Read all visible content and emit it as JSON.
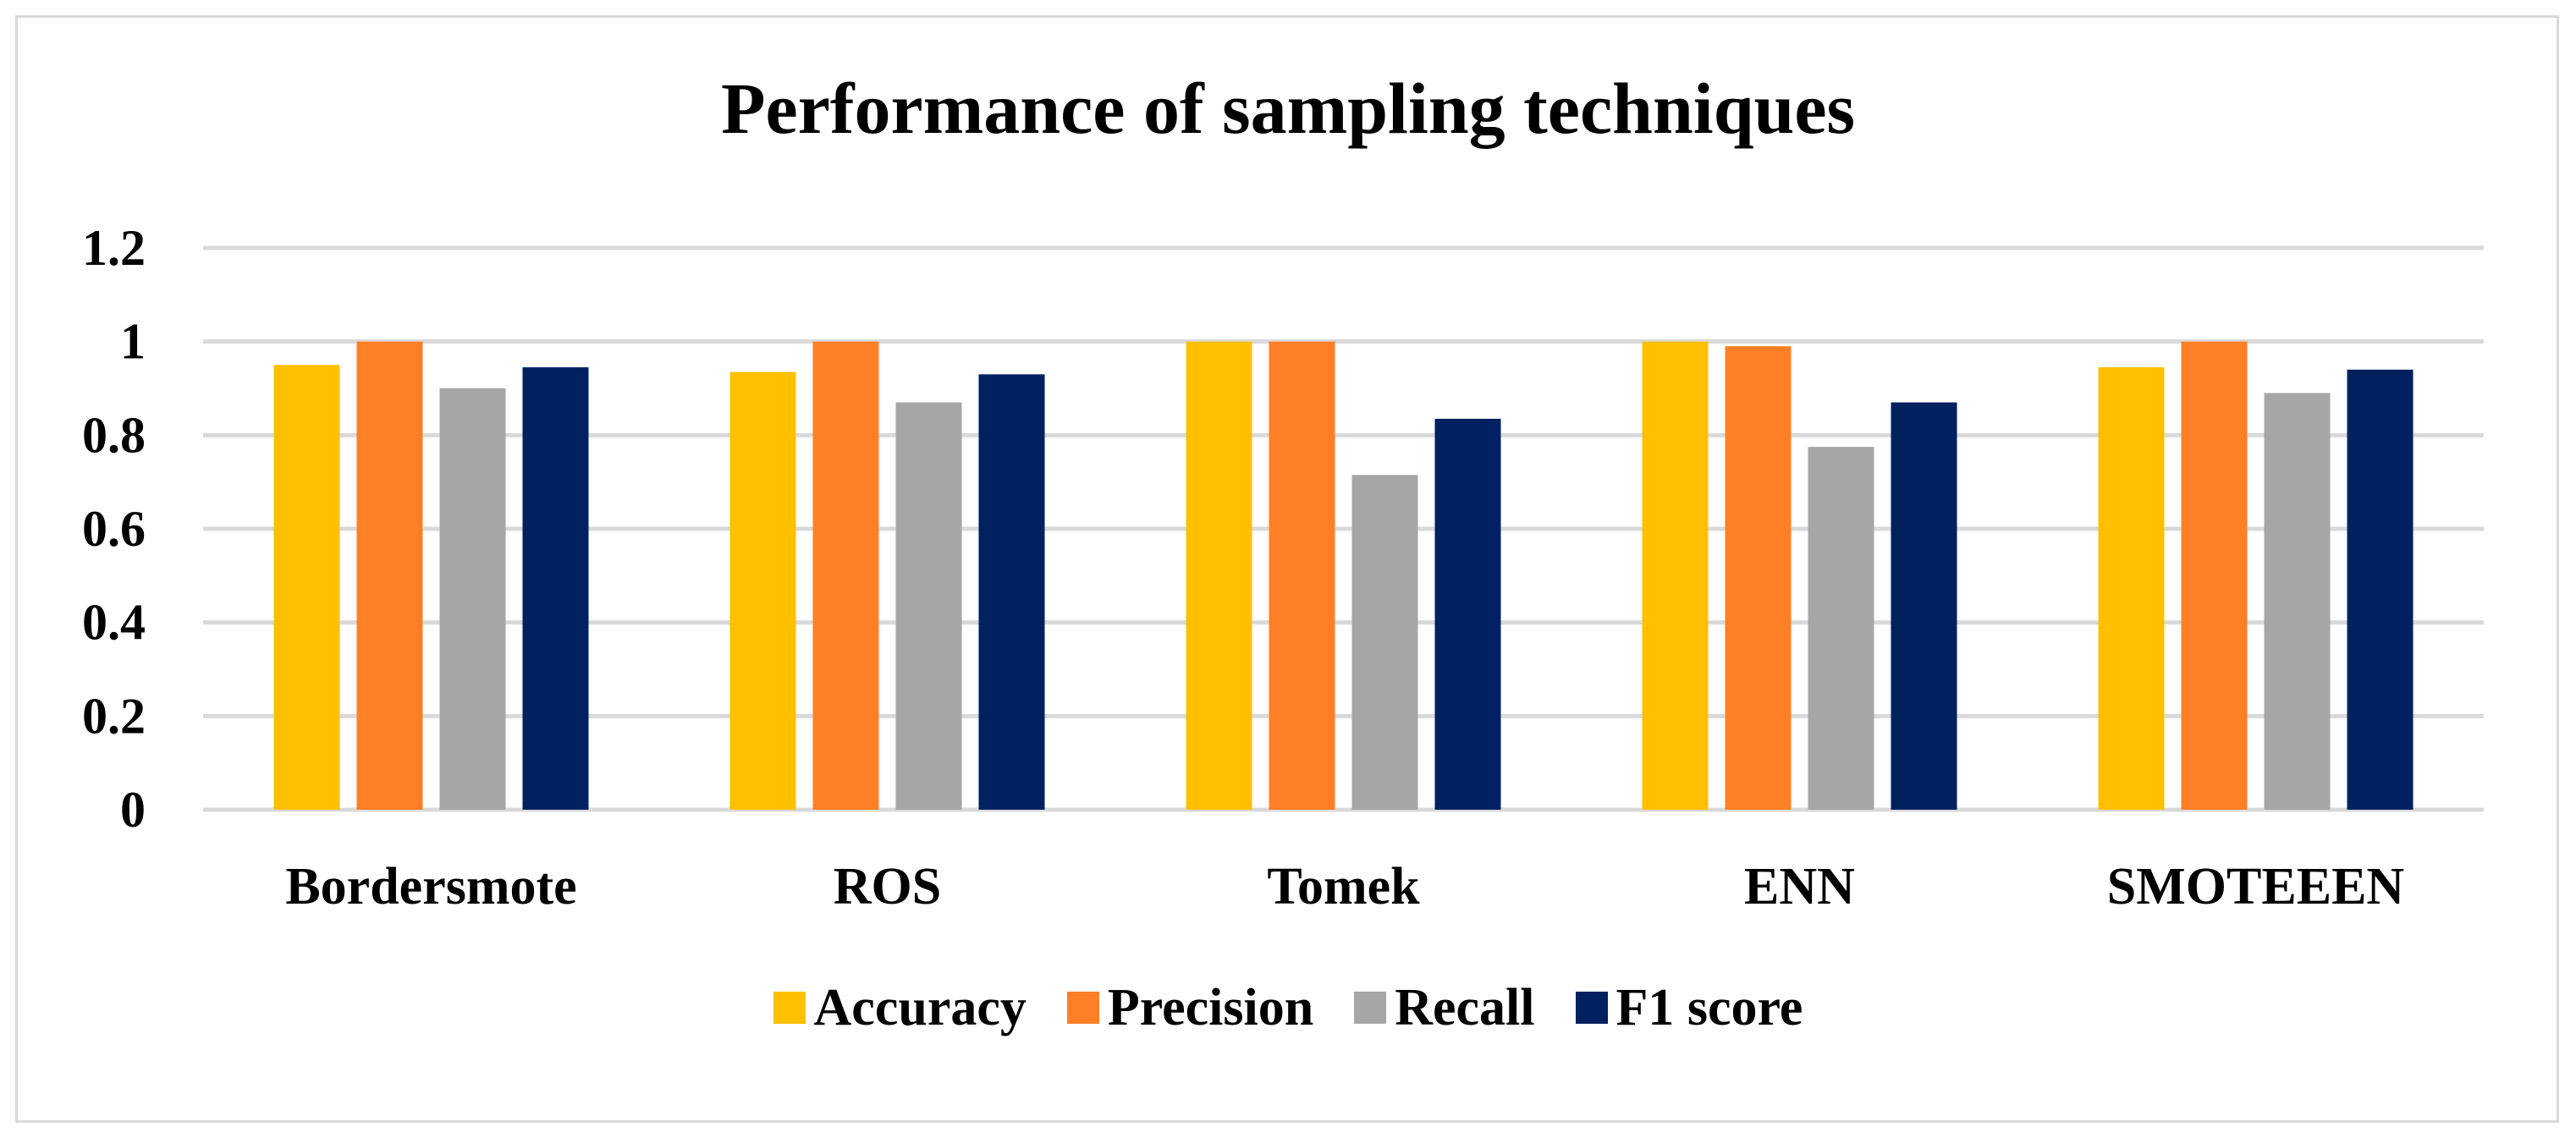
{
  "chart_data": {
    "type": "bar",
    "title": "Performance of sampling techniques",
    "categories": [
      "Bordersmote",
      "ROS",
      "Tomek",
      "ENN",
      "SMOTEEEN"
    ],
    "series": [
      {
        "name": "Accuracy",
        "color": "#FFC000",
        "values": [
          0.95,
          0.935,
          1.0,
          1.0,
          0.945
        ]
      },
      {
        "name": "Precision",
        "color": "#FF7F27",
        "values": [
          1.0,
          1.0,
          1.0,
          0.99,
          1.0
        ]
      },
      {
        "name": "Recall",
        "color": "#A6A6A6",
        "values": [
          0.9,
          0.87,
          0.715,
          0.775,
          0.89
        ]
      },
      {
        "name": "F1 score",
        "color": "#002060",
        "values": [
          0.945,
          0.93,
          0.835,
          0.87,
          0.94
        ]
      }
    ],
    "yticks": [
      "0",
      "0.2",
      "0.4",
      "0.6",
      "0.8",
      "1",
      "1.2"
    ],
    "ylim": [
      0,
      1.2
    ],
    "xlabel": "",
    "ylabel": "",
    "grid": true,
    "legend_position": "bottom"
  }
}
